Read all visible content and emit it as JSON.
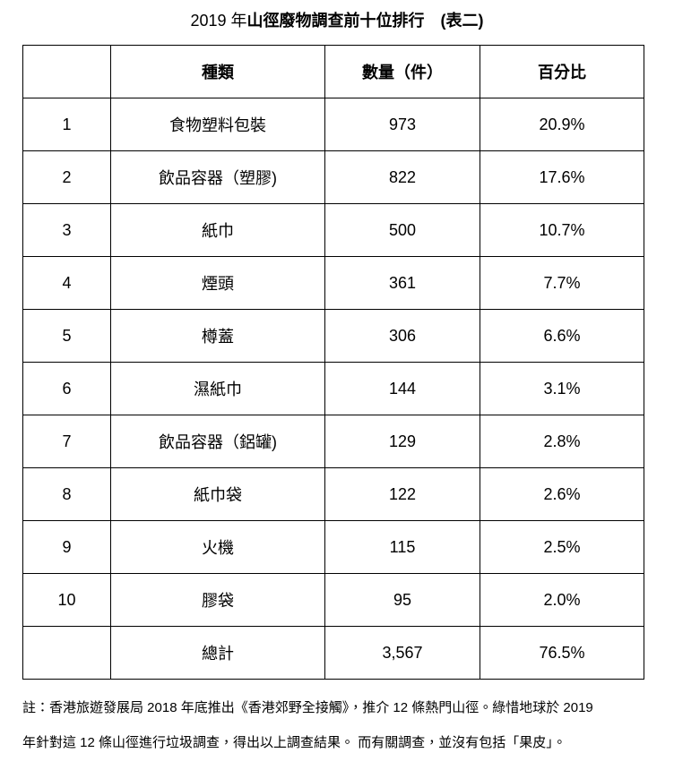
{
  "title": [
    "2019 年",
    "山徑廢物調查前十位排行　(表二)"
  ],
  "table": {
    "header": [
      "種類",
      "數量（件）",
      "百分比"
    ],
    "rows": [
      [
        "1",
        "食物塑料包裝",
        "973",
        "20.9%"
      ],
      [
        "2",
        "飲品容器（塑膠)",
        "822",
        "17.6%"
      ],
      [
        "3",
        "紙巾",
        "500",
        "10.7%"
      ],
      [
        "4",
        "煙頭",
        "361",
        "7.7%"
      ],
      [
        "5",
        "樽蓋",
        "306",
        "6.6%"
      ],
      [
        "6",
        "濕紙巾",
        "144",
        "3.1%"
      ],
      [
        "7",
        "飲品容器（鋁罐)",
        "129",
        "2.8%"
      ],
      [
        "8",
        "紙巾袋",
        "122",
        "2.6%"
      ],
      [
        "9",
        "火機",
        "115",
        "2.5%"
      ],
      [
        "10",
        "膠袋",
        "95",
        "2.0%"
      ]
    ],
    "total": [
      "總計",
      "3,567",
      "76.5%"
    ]
  },
  "note": [
    "註：香港旅遊發展局 2018 年底推出《香港郊野全接觸》，推介 12 條熱門山徑。綠惜地球於 2019",
    "年針對這 12 條山徑進行垃圾調查，得出以上調查結果。 而有關調查，並沒有包括「果皮」。"
  ]
}
